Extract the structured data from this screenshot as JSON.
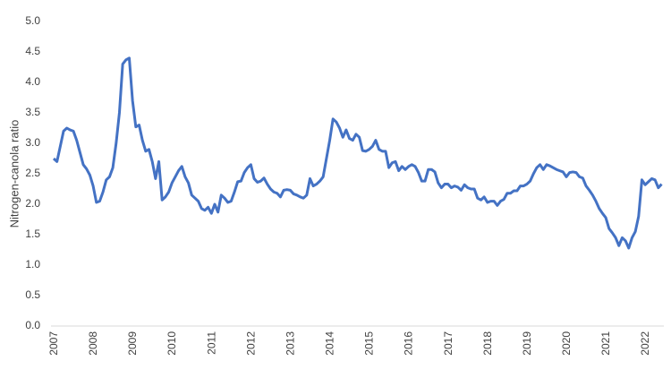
{
  "chart_data": {
    "type": "line",
    "y_label": "Nitrogen-canola ratio",
    "color": "#4472c4",
    "categories": [
      "2007",
      null,
      null,
      null,
      null,
      null,
      null,
      null,
      null,
      null,
      null,
      null,
      "2008",
      null,
      null,
      null,
      null,
      null,
      null,
      null,
      null,
      null,
      null,
      null,
      "2009",
      null,
      null,
      null,
      null,
      null,
      null,
      null,
      null,
      null,
      null,
      null,
      "2010",
      null,
      null,
      null,
      null,
      null,
      null,
      null,
      null,
      null,
      null,
      null,
      "2011",
      null,
      null,
      null,
      null,
      null,
      null,
      null,
      null,
      null,
      null,
      null,
      "2012",
      null,
      null,
      null,
      null,
      null,
      null,
      null,
      null,
      null,
      null,
      null,
      "2013",
      null,
      null,
      null,
      null,
      null,
      null,
      null,
      null,
      null,
      null,
      null,
      "2014",
      null,
      null,
      null,
      null,
      null,
      null,
      null,
      null,
      null,
      null,
      null,
      "2015",
      null,
      null,
      null,
      null,
      null,
      null,
      null,
      null,
      null,
      null,
      null,
      "2016",
      null,
      null,
      null,
      null,
      null,
      null,
      null,
      null,
      null,
      null,
      null,
      "2017",
      null,
      null,
      null,
      null,
      null,
      null,
      null,
      null,
      null,
      null,
      null,
      "2018",
      null,
      null,
      null,
      null,
      null,
      null,
      null,
      null,
      null,
      null,
      null,
      "2019",
      null,
      null,
      null,
      null,
      null,
      null,
      null,
      null,
      null,
      null,
      null,
      "2020",
      null,
      null,
      null,
      null,
      null,
      null,
      null,
      null,
      null,
      null,
      null,
      "2021",
      null,
      null,
      null,
      null,
      null,
      null,
      null,
      null,
      null,
      null,
      null,
      "2022",
      null,
      null,
      null,
      null,
      null
    ],
    "values": [
      2.75,
      2.7,
      2.95,
      3.2,
      3.25,
      3.22,
      3.2,
      3.05,
      2.85,
      2.65,
      2.58,
      2.48,
      2.3,
      2.03,
      2.05,
      2.2,
      2.4,
      2.45,
      2.6,
      3.0,
      3.5,
      4.3,
      4.37,
      4.4,
      3.7,
      3.27,
      3.3,
      3.05,
      2.87,
      2.9,
      2.7,
      2.42,
      2.7,
      2.07,
      2.12,
      2.2,
      2.35,
      2.45,
      2.55,
      2.62,
      2.45,
      2.35,
      2.15,
      2.1,
      2.05,
      1.93,
      1.9,
      1.95,
      1.85,
      2.0,
      1.87,
      2.15,
      2.1,
      2.03,
      2.05,
      2.2,
      2.37,
      2.38,
      2.52,
      2.6,
      2.65,
      2.42,
      2.36,
      2.38,
      2.43,
      2.33,
      2.25,
      2.2,
      2.18,
      2.12,
      2.23,
      2.24,
      2.23,
      2.17,
      2.15,
      2.12,
      2.1,
      2.15,
      2.42,
      2.3,
      2.33,
      2.38,
      2.45,
      2.75,
      3.05,
      3.4,
      3.35,
      3.25,
      3.1,
      3.22,
      3.08,
      3.05,
      3.15,
      3.1,
      2.88,
      2.87,
      2.9,
      2.95,
      3.05,
      2.9,
      2.87,
      2.87,
      2.6,
      2.68,
      2.7,
      2.55,
      2.62,
      2.57,
      2.62,
      2.65,
      2.62,
      2.52,
      2.38,
      2.38,
      2.57,
      2.57,
      2.53,
      2.35,
      2.27,
      2.33,
      2.33,
      2.27,
      2.3,
      2.28,
      2.23,
      2.32,
      2.27,
      2.25,
      2.25,
      2.1,
      2.07,
      2.12,
      2.03,
      2.05,
      2.05,
      1.98,
      2.05,
      2.08,
      2.18,
      2.18,
      2.22,
      2.22,
      2.3,
      2.3,
      2.33,
      2.38,
      2.5,
      2.6,
      2.65,
      2.57,
      2.65,
      2.63,
      2.6,
      2.57,
      2.55,
      2.53,
      2.45,
      2.52,
      2.53,
      2.52,
      2.45,
      2.43,
      2.3,
      2.23,
      2.15,
      2.05,
      1.93,
      1.85,
      1.78,
      1.6,
      1.53,
      1.45,
      1.32,
      1.45,
      1.4,
      1.28,
      1.45,
      1.55,
      1.8,
      2.4,
      2.32,
      2.37,
      2.42,
      2.4,
      2.27,
      2.33
    ],
    "ylim": [
      0,
      5
    ],
    "yticks": [
      {
        "value": 0,
        "label": "0.0"
      },
      0.5,
      {
        "value": 1,
        "label": "1.0"
      },
      1.5,
      {
        "value": 2,
        "label": "2.0"
      },
      2.5,
      {
        "value": 3,
        "label": "3.0"
      },
      3.5,
      {
        "value": 4,
        "label": "4.0"
      },
      4.5,
      {
        "value": 5,
        "label": "5.0"
      }
    ],
    "grid": false
  }
}
